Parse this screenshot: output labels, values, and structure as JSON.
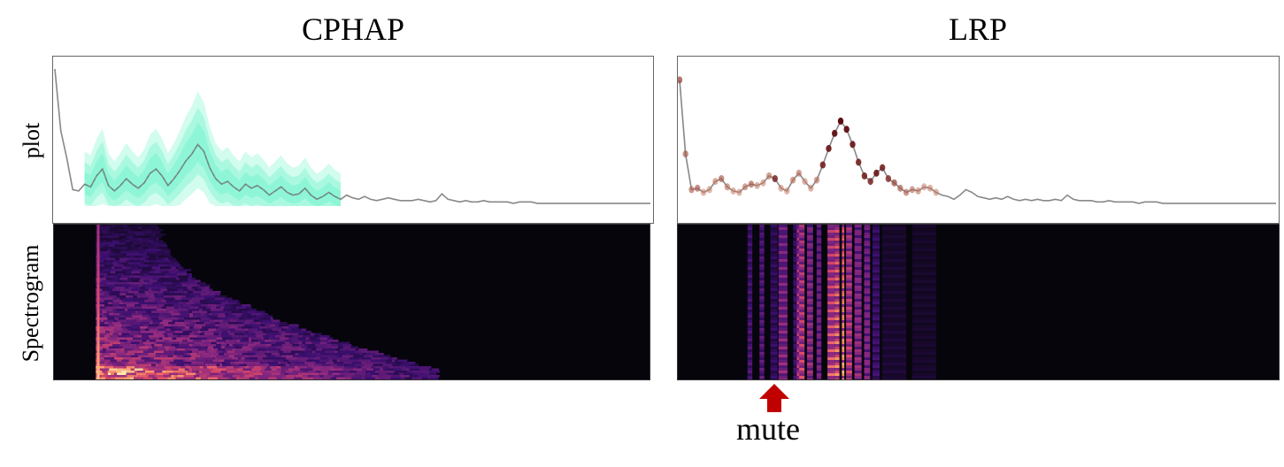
{
  "titles": {
    "left": "CPHAP",
    "right": "LRP"
  },
  "row_labels": {
    "top": "plot",
    "bottom": "Spectrogram"
  },
  "annotation": {
    "text": "mute",
    "arrow_color": "#c00000"
  },
  "colors": {
    "signal_line": "#888888",
    "band_fill": "#7cf5cf",
    "dots_low": "#f4a582",
    "dots_high": "#5b0a10",
    "spec_bg": "#07050c"
  },
  "chart_data": [
    {
      "type": "line",
      "name": "CPHAP",
      "title": "CPHAP",
      "ylabel": "plot",
      "series": [
        {
          "values": [
            1.0,
            0.55,
            0.35,
            0.12,
            0.11,
            0.16,
            0.14,
            0.22,
            0.27,
            0.15,
            0.11,
            0.15,
            0.2,
            0.16,
            0.13,
            0.17,
            0.24,
            0.27,
            0.22,
            0.15,
            0.2,
            0.26,
            0.33,
            0.38,
            0.45,
            0.4,
            0.28,
            0.2,
            0.16,
            0.18,
            0.14,
            0.11,
            0.16,
            0.13,
            0.15,
            0.12,
            0.08,
            0.11,
            0.14,
            0.1,
            0.08,
            0.09,
            0.13,
            0.08,
            0.05,
            0.07,
            0.1,
            0.07,
            0.05,
            0.08,
            0.06,
            0.05,
            0.07,
            0.05,
            0.04,
            0.05,
            0.06,
            0.05,
            0.04,
            0.04,
            0.04,
            0.05,
            0.04,
            0.03,
            0.04,
            0.09,
            0.05,
            0.04,
            0.03,
            0.04,
            0.03,
            0.03,
            0.04,
            0.03,
            0.03,
            0.03,
            0.03,
            0.02,
            0.03,
            0.03,
            0.03,
            0.02,
            0.02,
            0.02,
            0.02,
            0.02,
            0.02,
            0.02,
            0.02,
            0.02,
            0.02,
            0.02,
            0.02,
            0.02,
            0.02,
            0.02,
            0.02,
            0.02,
            0.02,
            0.02,
            0.02
          ]
        }
      ],
      "band_range": [
        5,
        48
      ]
    },
    {
      "type": "line",
      "name": "LRP",
      "title": "LRP",
      "series": [
        {
          "values": [
            0.92,
            0.38,
            0.12,
            0.13,
            0.1,
            0.12,
            0.18,
            0.2,
            0.14,
            0.11,
            0.1,
            0.14,
            0.16,
            0.15,
            0.17,
            0.22,
            0.2,
            0.13,
            0.11,
            0.19,
            0.24,
            0.18,
            0.13,
            0.19,
            0.3,
            0.42,
            0.53,
            0.62,
            0.56,
            0.45,
            0.32,
            0.22,
            0.18,
            0.24,
            0.28,
            0.2,
            0.17,
            0.13,
            0.1,
            0.12,
            0.11,
            0.14,
            0.13,
            0.1,
            0.08,
            0.07,
            0.05,
            0.08,
            0.12,
            0.1,
            0.07,
            0.06,
            0.05,
            0.06,
            0.05,
            0.07,
            0.05,
            0.04,
            0.05,
            0.04,
            0.05,
            0.04,
            0.04,
            0.05,
            0.04,
            0.08,
            0.05,
            0.04,
            0.04,
            0.04,
            0.03,
            0.03,
            0.04,
            0.03,
            0.03,
            0.03,
            0.03,
            0.02,
            0.03,
            0.03,
            0.03,
            0.02,
            0.02,
            0.02,
            0.02,
            0.02,
            0.02,
            0.02,
            0.02,
            0.02,
            0.02,
            0.02,
            0.02,
            0.02,
            0.02,
            0.02,
            0.02,
            0.02,
            0.02,
            0.02,
            0.02
          ]
        }
      ],
      "relevance": [
        0.6,
        0.5,
        0.45,
        0.5,
        0.3,
        0.3,
        0.35,
        0.5,
        0.4,
        0.3,
        0.3,
        0.4,
        0.5,
        0.3,
        0.3,
        0.4,
        0.8,
        0.3,
        0.3,
        0.4,
        0.4,
        0.3,
        0.3,
        0.4,
        0.85,
        0.9,
        0.95,
        1.0,
        0.95,
        0.9,
        0.85,
        0.85,
        0.8,
        0.9,
        0.85,
        0.75,
        0.6,
        0.5,
        0.45,
        0.4,
        0.35,
        0.3,
        0.3,
        0.3
      ]
    }
  ],
  "spectrograms": {
    "left": {
      "active_x_range": [
        0.07,
        0.64
      ],
      "top_extent_start": 0.6,
      "bright_column": 0.072
    },
    "right": {
      "stripes": [
        {
          "at": 0.12,
          "width": 0.008,
          "level": 0.35
        },
        {
          "at": 0.14,
          "width": 0.008,
          "level": 0.4
        },
        {
          "at": 0.16,
          "width": 0.012,
          "level": 0.25
        },
        {
          "at": 0.175,
          "width": 0.015,
          "level": 0.55
        },
        {
          "at": 0.195,
          "width": 0.006,
          "level": 0.3
        },
        {
          "at": 0.205,
          "width": 0.012,
          "level": 0.75
        },
        {
          "at": 0.22,
          "width": 0.01,
          "level": 0.6
        },
        {
          "at": 0.235,
          "width": 0.008,
          "level": 0.5
        },
        {
          "at": 0.2,
          "width": 0.004,
          "level": 0.7
        },
        {
          "at": 0.255,
          "width": 0.012,
          "level": 0.8
        },
        {
          "at": 0.265,
          "width": 0.008,
          "level": 0.9
        },
        {
          "at": 0.275,
          "width": 0.004,
          "level": 1.0
        },
        {
          "at": 0.285,
          "width": 0.01,
          "level": 0.75
        },
        {
          "at": 0.3,
          "width": 0.012,
          "level": 0.6
        },
        {
          "at": 0.315,
          "width": 0.01,
          "level": 0.55
        },
        {
          "at": 0.33,
          "width": 0.012,
          "level": 0.3
        },
        {
          "at": 0.36,
          "width": 0.04,
          "level": 0.12
        },
        {
          "at": 0.41,
          "width": 0.04,
          "level": 0.1
        }
      ]
    }
  }
}
